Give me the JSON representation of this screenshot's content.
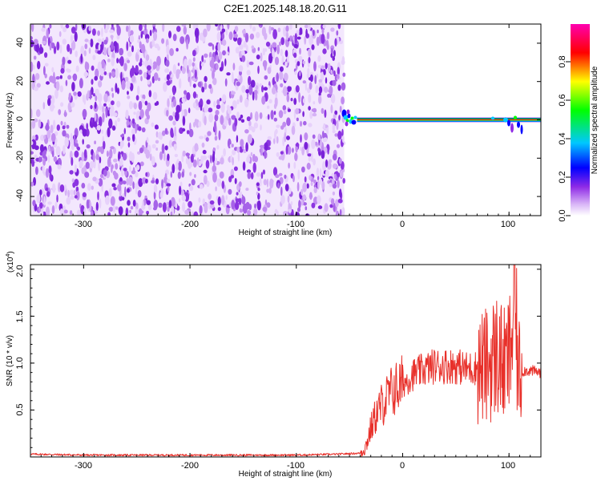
{
  "title": "C2E1.2025.148.18.20.G11",
  "spectrogram": {
    "x_label": "Height of straight line (km)",
    "y_label": "Frequency (Hz)",
    "x_ticks": [
      "-300",
      "-200",
      "-100",
      "0",
      "100"
    ],
    "y_ticks": [
      "40",
      "20",
      "0",
      "-20",
      "-40"
    ],
    "colorbar": {
      "label": "Normalized spectral amplitude",
      "ticks": [
        "0.0",
        "0.2",
        "0.4",
        "0.6",
        "0.8"
      ]
    }
  },
  "snr_plot": {
    "x_label": "Height of straight line (km)",
    "y_label": "SNR (10 * v/v)",
    "y_multiplier": "(x10",
    "y_multiplier_exp": "4",
    "y_multiplier_close": ")",
    "x_ticks": [
      "-300",
      "-200",
      "-100",
      "0",
      "100"
    ],
    "y_ticks": [
      "2.0",
      "1.5",
      "1.0",
      "0.5"
    ]
  },
  "chart_data": [
    {
      "type": "heatmap",
      "title": "C2E1.2025.148.18.20.G11",
      "xlabel": "Height of straight line (km)",
      "ylabel": "Frequency (Hz)",
      "xlim": [
        -350,
        130
      ],
      "ylim": [
        -50,
        50
      ],
      "noise_region_x": [
        -350,
        -55
      ],
      "signal_region_x": [
        -55,
        130
      ],
      "signal_center_frequency_hz": 0,
      "colorbar_label": "Normalized spectral amplitude",
      "colorbar_range": [
        0.0,
        1.0
      ],
      "colormap": [
        "#ffffff",
        "#8f2be6",
        "#0000ff",
        "#00c8ff",
        "#00ff00",
        "#ffff00",
        "#ff0000",
        "#ff00b0"
      ]
    },
    {
      "type": "line",
      "xlabel": "Height of straight line (km)",
      "ylabel": "SNR (10 * v/v)",
      "xlim": [
        -350,
        130
      ],
      "ylim": [
        0,
        2.05
      ],
      "y_scale": "x10^4",
      "color": "#e8302a",
      "series": [
        {
          "x": [
            -350,
            -300,
            -250,
            -200,
            -150,
            -100,
            -60,
            -40,
            -35,
            -30,
            -25,
            -20,
            -10,
            0,
            10,
            20,
            30,
            40,
            50,
            60,
            70,
            80,
            85,
            90,
            95,
            100,
            103,
            105,
            108,
            110,
            115,
            120,
            130
          ],
          "y": [
            0.03,
            0.02,
            0.02,
            0.02,
            0.02,
            0.02,
            0.03,
            0.04,
            0.1,
            0.3,
            0.45,
            0.55,
            0.7,
            0.78,
            0.88,
            0.93,
            0.97,
            0.97,
            0.97,
            0.94,
            0.95,
            0.97,
            1.05,
            1.1,
            0.95,
            1.05,
            1.3,
            1.9,
            1.0,
            0.9,
            0.92,
            0.92,
            0.9
          ]
        }
      ]
    }
  ]
}
